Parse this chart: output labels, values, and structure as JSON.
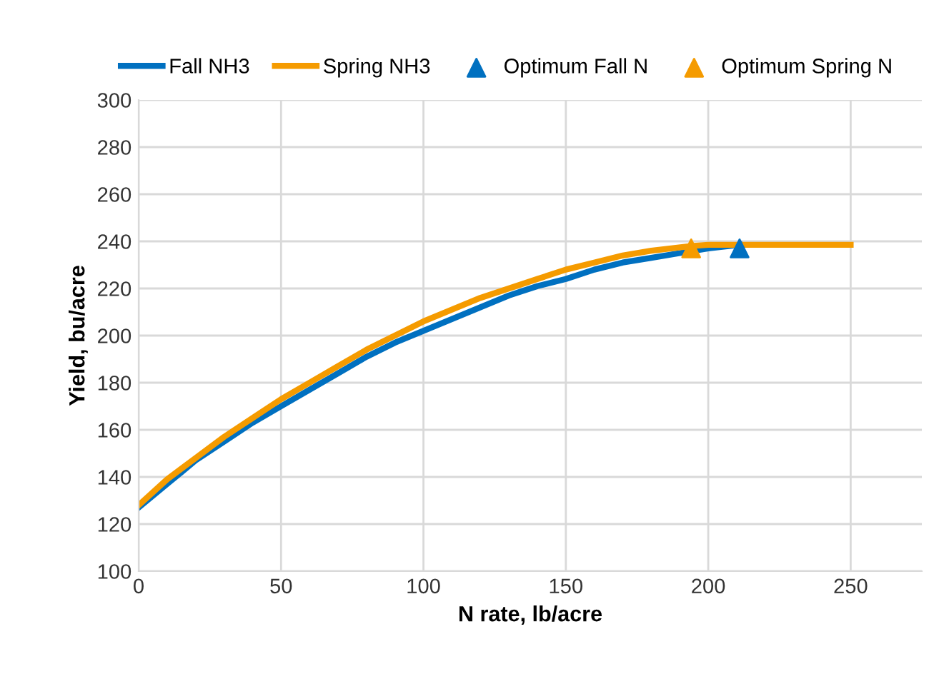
{
  "chart_data": {
    "type": "line",
    "xlabel": "N rate, lb/acre",
    "ylabel": "Yield, bu/acre",
    "series": [
      {
        "name": "Fall NH3",
        "color": "#0070c0",
        "x": [
          0,
          10,
          20,
          30,
          40,
          50,
          60,
          70,
          80,
          90,
          100,
          110,
          120,
          130,
          140,
          150,
          160,
          170,
          180,
          190,
          200,
          211
        ],
        "values": [
          127,
          137,
          147,
          155,
          163,
          170,
          177,
          184,
          191,
          197,
          202,
          207,
          212,
          217,
          221,
          224,
          228,
          231,
          233,
          235,
          237,
          238.5
        ]
      },
      {
        "name": "Spring NH3",
        "color": "#f59b00",
        "x": [
          0,
          10,
          20,
          30,
          40,
          50,
          60,
          70,
          80,
          90,
          100,
          110,
          120,
          130,
          140,
          150,
          160,
          170,
          180,
          194,
          200,
          220,
          250
        ],
        "values": [
          128,
          139,
          148,
          157,
          165,
          173,
          180,
          187,
          194,
          200,
          206,
          211,
          216,
          220,
          224,
          228,
          231,
          234,
          236,
          238,
          238.5,
          238.5,
          238.5
        ]
      },
      {
        "name": "Optimum Fall N",
        "type": "scatter",
        "marker": "triangle",
        "color": "#0070c0",
        "x": [
          211
        ],
        "values": [
          237
        ]
      },
      {
        "name": "Optimum Spring N",
        "type": "scatter",
        "marker": "triangle",
        "color": "#f59b00",
        "x": [
          194
        ],
        "values": [
          237
        ]
      }
    ],
    "xlim": [
      0,
      275
    ],
    "xticks": [
      0,
      50,
      100,
      150,
      200,
      250
    ],
    "ylim": [
      100,
      300
    ],
    "yticks": [
      100,
      120,
      140,
      160,
      180,
      200,
      220,
      240,
      260,
      280,
      300
    ],
    "grid": true,
    "legend": "top"
  }
}
